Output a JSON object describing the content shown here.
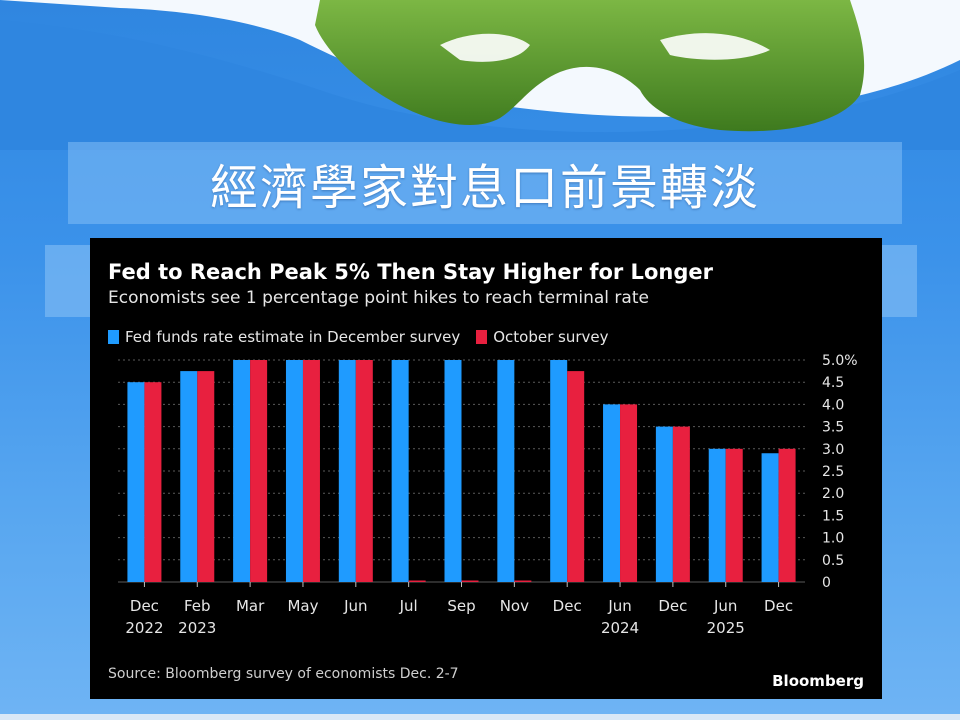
{
  "headline": "經濟學家對息口前景轉淡",
  "colors": {
    "december": "#1f9bff",
    "october": "#e8203f",
    "panel_bg": "#000000",
    "slide_bg": "#3b92ea",
    "grass": "#5f9a2e"
  },
  "chart_data": {
    "type": "bar",
    "title": "Fed to Reach Peak 5% Then Stay Higher for Longer",
    "subtitle": "Economists see 1 percentage point hikes to reach terminal rate",
    "categories": [
      "Dec 2022",
      "Feb 2023",
      "Mar",
      "May",
      "Jun",
      "Jul",
      "Sep",
      "Nov",
      "Dec",
      "Jun 2024",
      "Dec",
      "Jun 2025",
      "Dec"
    ],
    "category_labels": [
      [
        "Dec",
        "2022"
      ],
      [
        "Feb",
        "2023"
      ],
      [
        "Mar",
        ""
      ],
      [
        "May",
        ""
      ],
      [
        "Jun",
        ""
      ],
      [
        "Jul",
        ""
      ],
      [
        "Sep",
        ""
      ],
      [
        "Nov",
        ""
      ],
      [
        "Dec",
        ""
      ],
      [
        "Jun",
        "2024"
      ],
      [
        "Dec",
        ""
      ],
      [
        "Jun",
        "2025"
      ],
      [
        "Dec",
        ""
      ]
    ],
    "series": [
      {
        "name": "Fed funds rate estimate in December survey",
        "values": [
          4.5,
          4.75,
          5.0,
          5.0,
          5.0,
          5.0,
          5.0,
          5.0,
          5.0,
          4.0,
          3.5,
          3.0,
          2.9
        ]
      },
      {
        "name": "October survey",
        "values": [
          4.5,
          4.75,
          5.0,
          5.0,
          5.0,
          0,
          0,
          0,
          4.75,
          4.0,
          3.5,
          3.0,
          3.0
        ]
      }
    ],
    "ylim": [
      0,
      5.0
    ],
    "yticks": [
      "0",
      "0.5",
      "1.0",
      "1.5",
      "2.0",
      "2.5",
      "3.0",
      "3.5",
      "4.0",
      "4.5",
      "5.0%"
    ],
    "ytick_values": [
      0,
      0.5,
      1.0,
      1.5,
      2.0,
      2.5,
      3.0,
      3.5,
      4.0,
      4.5,
      5.0
    ],
    "y_axis_side": "right",
    "grid": true,
    "legend_position": "top-left",
    "source": "Source: Bloomberg survey of economists Dec. 2-7",
    "brand": "Bloomberg"
  }
}
